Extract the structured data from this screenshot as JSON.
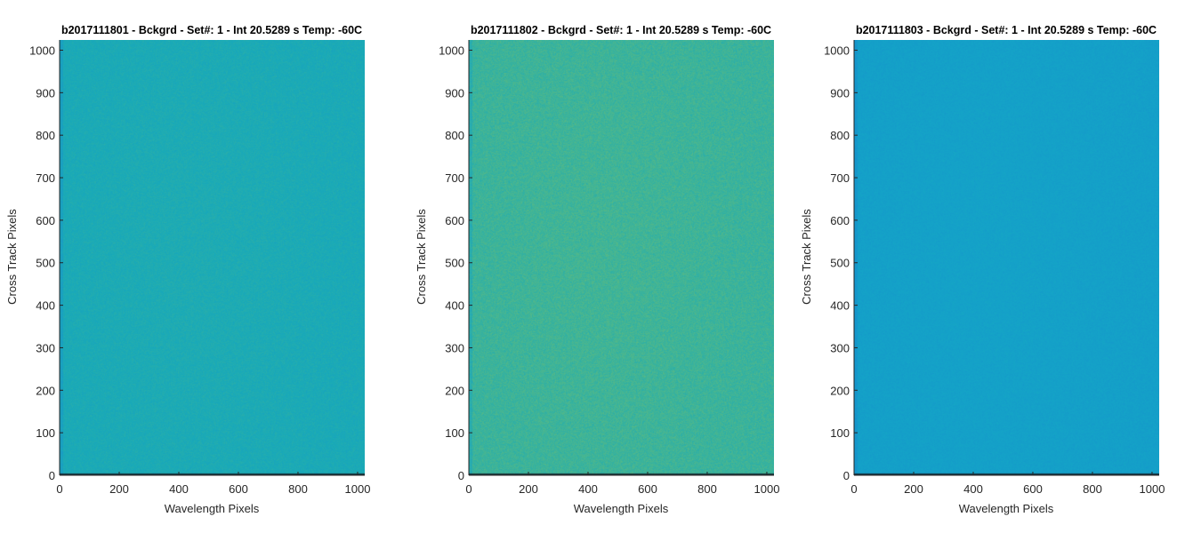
{
  "figure": {
    "panels": [
      {
        "title": "b2017111801 - Bckgrd - Set#: 1 - Int 20.5289 s Temp: -60C",
        "xlabel": "Wavelength Pixels",
        "ylabel": "Cross Track Pixels"
      },
      {
        "title": "b2017111802 - Bckgrd - Set#: 1 - Int 20.5289 s Temp: -60C",
        "xlabel": "Wavelength Pixels",
        "ylabel": "Cross Track Pixels"
      },
      {
        "title": "b2017111803 - Bckgrd - Set#: 1 - Int 20.5289 s Temp: -60C",
        "xlabel": "Wavelength Pixels",
        "ylabel": "Cross Track Pixels"
      }
    ]
  },
  "chart_data": [
    {
      "type": "heatmap",
      "title": "b2017111801 - Bckgrd - Set#: 1 - Int 20.5289 s Temp: -60C",
      "xlabel": "Wavelength Pixels",
      "ylabel": "Cross Track Pixels",
      "xlim": [
        0,
        1024
      ],
      "ylim": [
        0,
        1024
      ],
      "xticks": [
        0,
        200,
        400,
        600,
        800,
        1000
      ],
      "yticks": [
        0,
        100,
        200,
        300,
        400,
        500,
        600,
        700,
        800,
        900,
        1000
      ],
      "grid": false,
      "colorbar": false,
      "colormap": "parula",
      "colors": {
        "low": "#1a95c8",
        "mid": "#19aab8",
        "high": "#3cb39a"
      },
      "mean_level": 0.5,
      "noise_level": 0.12
    },
    {
      "type": "heatmap",
      "title": "b2017111802 - Bckgrd - Set#: 1 - Int 20.5289 s Temp: -60C",
      "xlabel": "Wavelength Pixels",
      "ylabel": "Cross Track Pixels",
      "xlim": [
        0,
        1024
      ],
      "ylim": [
        0,
        1024
      ],
      "xticks": [
        0,
        200,
        400,
        600,
        800,
        1000
      ],
      "yticks": [
        0,
        100,
        200,
        300,
        400,
        500,
        600,
        700,
        800,
        900,
        1000
      ],
      "grid": false,
      "colorbar": false,
      "colormap": "parula",
      "colors": {
        "low": "#1a9fc5",
        "mid": "#2eb0a6",
        "high": "#5fbb7e"
      },
      "mean_level": 0.62,
      "noise_level": 0.16
    },
    {
      "type": "heatmap",
      "title": "b2017111803 - Bckgrd - Set#: 1 - Int 20.5289 s Temp: -60C",
      "xlabel": "Wavelength Pixels",
      "ylabel": "Cross Track Pixels",
      "xlim": [
        0,
        1024
      ],
      "ylim": [
        0,
        1024
      ],
      "xticks": [
        0,
        200,
        400,
        600,
        800,
        1000
      ],
      "yticks": [
        0,
        100,
        200,
        300,
        400,
        500,
        600,
        700,
        800,
        900,
        1000
      ],
      "grid": false,
      "colorbar": false,
      "colormap": "parula",
      "colors": {
        "low": "#1690cc",
        "mid": "#14a3c8",
        "high": "#1eaebb"
      },
      "mean_level": 0.4,
      "noise_level": 0.1
    }
  ]
}
